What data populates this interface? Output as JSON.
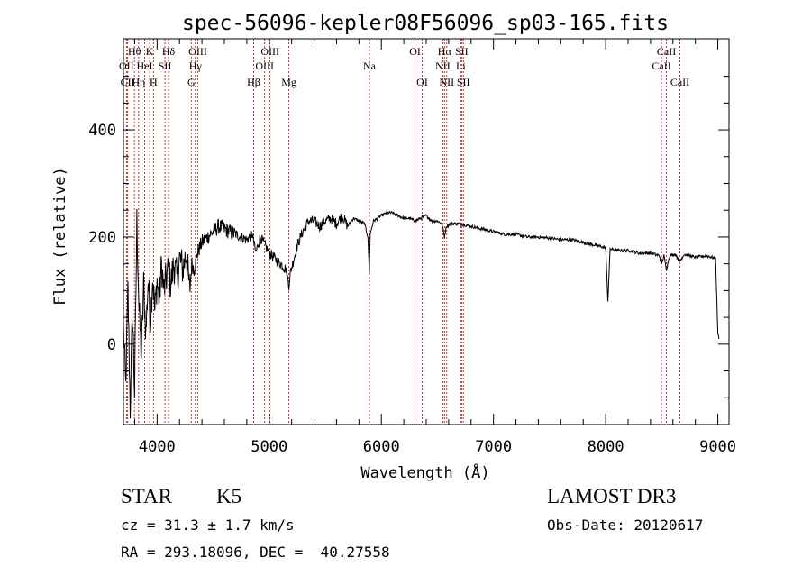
{
  "chart_data": {
    "type": "line",
    "title": "spec-56096-kepler08F56096_sp03-165.fits",
    "xlabel": "Wavelength (Å)",
    "ylabel": "Flux (relative)",
    "xlim": [
      3700,
      9100
    ],
    "ylim": [
      -150,
      570
    ],
    "x_ticks": [
      4000,
      5000,
      6000,
      7000,
      8000,
      9000
    ],
    "y_ticks": [
      0,
      200,
      400
    ],
    "line_color": "#000000",
    "marker_color": "#b22222",
    "spectral_lines": [
      {
        "label": "Hθ",
        "wavelength": 3798,
        "row": 0
      },
      {
        "label": "OII",
        "wavelength": 3727,
        "row": 1
      },
      {
        "label": "CII",
        "wavelength": 3737,
        "row": 2
      },
      {
        "label": "Hη",
        "wavelength": 3835,
        "row": 2
      },
      {
        "label": "K",
        "wavelength": 3934,
        "row": 0
      },
      {
        "label": "HeI",
        "wavelength": 3889,
        "row": 1
      },
      {
        "label": "H",
        "wavelength": 3968,
        "row": 2
      },
      {
        "label": "SII",
        "wavelength": 4070,
        "row": 1
      },
      {
        "label": "Hδ",
        "wavelength": 4102,
        "row": 0
      },
      {
        "label": "OIII",
        "wavelength": 4363,
        "row": 0
      },
      {
        "label": "Hγ",
        "wavelength": 4341,
        "row": 1
      },
      {
        "label": "G",
        "wavelength": 4305,
        "row": 2
      },
      {
        "label": "Hβ",
        "wavelength": 4861,
        "row": 2
      },
      {
        "label": "OIII",
        "wavelength": 5007,
        "row": 0
      },
      {
        "label": "OIII",
        "wavelength": 4959,
        "row": 1
      },
      {
        "label": "Mg",
        "wavelength": 5175,
        "row": 2
      },
      {
        "label": "Na",
        "wavelength": 5893,
        "row": 1
      },
      {
        "label": "OI",
        "wavelength": 6300,
        "row": 0
      },
      {
        "label": "OI",
        "wavelength": 6364,
        "row": 2
      },
      {
        "label": "Hα",
        "wavelength": 6563,
        "row": 0
      },
      {
        "label": "NII",
        "wavelength": 6548,
        "row": 1
      },
      {
        "label": "NII",
        "wavelength": 6583,
        "row": 2
      },
      {
        "label": "SII",
        "wavelength": 6716,
        "row": 0
      },
      {
        "label": "Li",
        "wavelength": 6708,
        "row": 1
      },
      {
        "label": "SII",
        "wavelength": 6731,
        "row": 2
      },
      {
        "label": "CaII",
        "wavelength": 8542,
        "row": 0
      },
      {
        "label": "CaII",
        "wavelength": 8498,
        "row": 1
      },
      {
        "label": "CaII",
        "wavelength": 8662,
        "row": 2
      }
    ],
    "spectrum": {
      "x": [
        3700,
        3720,
        3740,
        3760,
        3780,
        3800,
        3820,
        3840,
        3860,
        3880,
        3900,
        3920,
        3940,
        3960,
        3980,
        4000,
        4020,
        4040,
        4060,
        4080,
        4100,
        4120,
        4150,
        4180,
        4200,
        4230,
        4260,
        4290,
        4310,
        4330,
        4360,
        4400,
        4450,
        4500,
        4550,
        4600,
        4650,
        4700,
        4750,
        4800,
        4850,
        4880,
        4920,
        4960,
        5000,
        5050,
        5100,
        5150,
        5175,
        5190,
        5220,
        5260,
        5300,
        5350,
        5400,
        5450,
        5500,
        5550,
        5600,
        5650,
        5700,
        5750,
        5800,
        5850,
        5880,
        5893,
        5900,
        5930,
        5970,
        6000,
        6050,
        6100,
        6150,
        6200,
        6250,
        6300,
        6350,
        6400,
        6450,
        6500,
        6540,
        6563,
        6580,
        6620,
        6700,
        6800,
        6900,
        7000,
        7100,
        7200,
        7300,
        7400,
        7500,
        7600,
        7700,
        7800,
        7900,
        8000,
        8020,
        8040,
        8100,
        8200,
        8300,
        8400,
        8480,
        8498,
        8520,
        8542,
        8570,
        8620,
        8662,
        8700,
        8800,
        8900,
        8980,
        9000,
        9010
      ],
      "y": [
        30,
        -80,
        100,
        -120,
        60,
        -90,
        230,
        60,
        -20,
        110,
        20,
        120,
        40,
        130,
        60,
        120,
        80,
        150,
        100,
        120,
        140,
        110,
        150,
        120,
        160,
        140,
        170,
        100,
        150,
        140,
        170,
        190,
        200,
        210,
        220,
        215,
        210,
        205,
        200,
        195,
        205,
        170,
        200,
        185,
        170,
        160,
        150,
        140,
        110,
        135,
        160,
        190,
        210,
        230,
        230,
        220,
        230,
        235,
        225,
        240,
        220,
        235,
        230,
        225,
        200,
        130,
        205,
        230,
        235,
        240,
        245,
        245,
        240,
        235,
        235,
        230,
        235,
        240,
        230,
        230,
        225,
        200,
        220,
        225,
        225,
        220,
        215,
        210,
        205,
        205,
        200,
        200,
        198,
        195,
        195,
        190,
        185,
        180,
        80,
        178,
        175,
        175,
        170,
        170,
        165,
        150,
        165,
        140,
        165,
        168,
        155,
        168,
        162,
        165,
        160,
        20,
        10
      ]
    }
  },
  "info": {
    "class": "STAR",
    "subclass": "K5",
    "survey": "LAMOST DR3",
    "redshift": "cz = 31.3 ± 1.7 km/s",
    "obs_date": "Obs-Date: 20120617",
    "coords": "RA = 293.18096, DEC =  40.27558"
  }
}
